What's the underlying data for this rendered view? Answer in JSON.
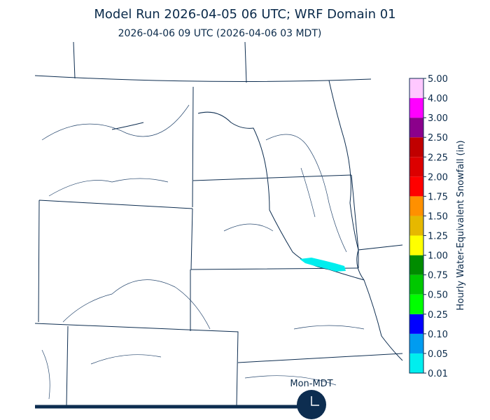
{
  "header": {
    "title": "Model Run 2026-04-05 06 UTC; WRF Domain 01",
    "subtitle": "2026-04-06 09 UTC  (2026-04-06 03 MDT)"
  },
  "colorbar": {
    "label": "Hourly Water-Equivalent Snowfall (in)",
    "ticks": [
      {
        "value": 0.01,
        "label": "0.01"
      },
      {
        "value": 0.05,
        "label": "0.05"
      },
      {
        "value": 0.1,
        "label": "0.10"
      },
      {
        "value": 0.25,
        "label": "0.25"
      },
      {
        "value": 0.5,
        "label": "0.50"
      },
      {
        "value": 0.75,
        "label": "0.75"
      },
      {
        "value": 1,
        "label": "1.00"
      },
      {
        "value": 1.25,
        "label": "1.25"
      },
      {
        "value": 1.5,
        "label": "1.50"
      },
      {
        "value": 1.75,
        "label": "1.75"
      },
      {
        "value": 2,
        "label": "2.00"
      },
      {
        "value": 2.25,
        "label": "2.25"
      },
      {
        "value": 2.5,
        "label": "2.50"
      },
      {
        "value": 3,
        "label": "3.00"
      },
      {
        "value": 4,
        "label": "4.00"
      },
      {
        "value": 5,
        "label": "5.00"
      }
    ],
    "colors": [
      "#00eeee",
      "#009cf0",
      "#0000ff",
      "#00ff00",
      "#00c800",
      "#008c00",
      "#ffff00",
      "#e6b800",
      "#ff9000",
      "#ff0000",
      "#dc0000",
      "#c00000",
      "#8b008b",
      "#ff00ff",
      "#ffc8ff"
    ]
  },
  "timeline": {
    "label": "Mon-MDT"
  }
}
